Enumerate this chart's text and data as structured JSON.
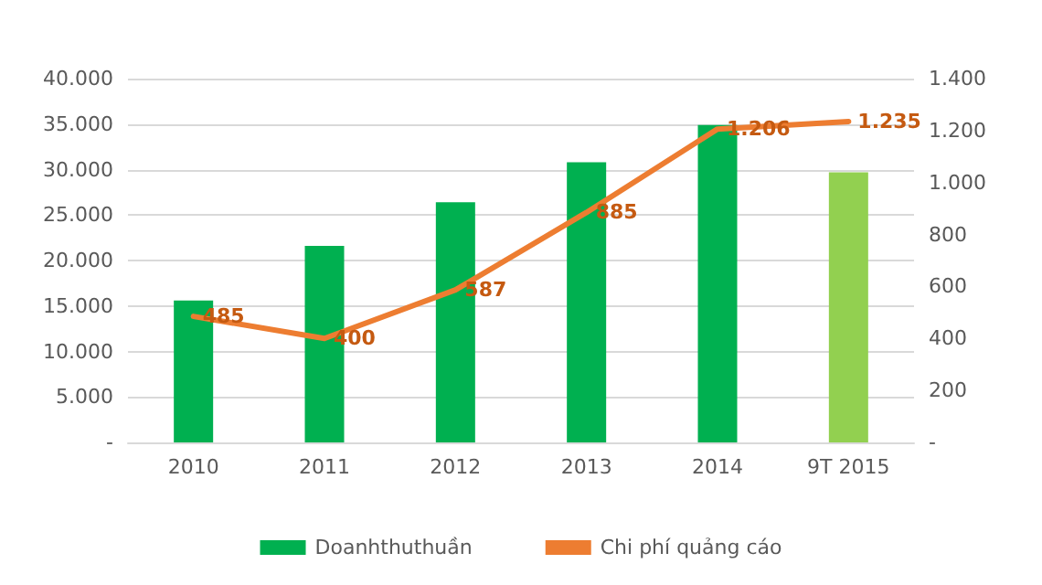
{
  "chart_data": {
    "type": "bar",
    "categories": [
      "2010",
      "2011",
      "2012",
      "2013",
      "2014",
      "9T 2015"
    ],
    "series": [
      {
        "name": "Doanhthuthuần",
        "color": "#00b050",
        "colors": [
          "#00b050",
          "#00b050",
          "#00b050",
          "#00b050",
          "#00b050",
          "#92d050"
        ],
        "values": [
          15600,
          21600,
          26400,
          30800,
          34900,
          29700
        ]
      },
      {
        "name": "Chi phí quảng cáo",
        "type": "line",
        "axis": "y2",
        "color": "#ed7d31",
        "values": [
          485,
          400,
          587,
          885,
          1206,
          1235
        ],
        "value_labels": [
          "485",
          "400",
          "587",
          "885",
          "1.206",
          "1.235"
        ]
      }
    ],
    "ylim": [
      0,
      40000
    ],
    "yticks": [
      {
        "value": 0,
        "label": "-"
      },
      {
        "value": 5000,
        "label": "5.000"
      },
      {
        "value": 10000,
        "label": "10.000"
      },
      {
        "value": 15000,
        "label": "15.000"
      },
      {
        "value": 20000,
        "label": "20.000"
      },
      {
        "value": 25000,
        "label": "25.000"
      },
      {
        "value": 30000,
        "label": "30.000"
      },
      {
        "value": 35000,
        "label": "35.000"
      },
      {
        "value": 40000,
        "label": "40.000"
      }
    ],
    "y2lim": [
      0,
      1400
    ],
    "y2ticks": [
      {
        "value": 0,
        "label": "-"
      },
      200,
      400,
      600,
      800,
      {
        "value": 1000,
        "label": "1.000"
      },
      {
        "value": 1200,
        "label": "1.200"
      },
      {
        "value": 1400,
        "label": "1.400"
      }
    ],
    "grid": "y",
    "legend": "bottom",
    "marker": "none",
    "line_style": "solid"
  }
}
